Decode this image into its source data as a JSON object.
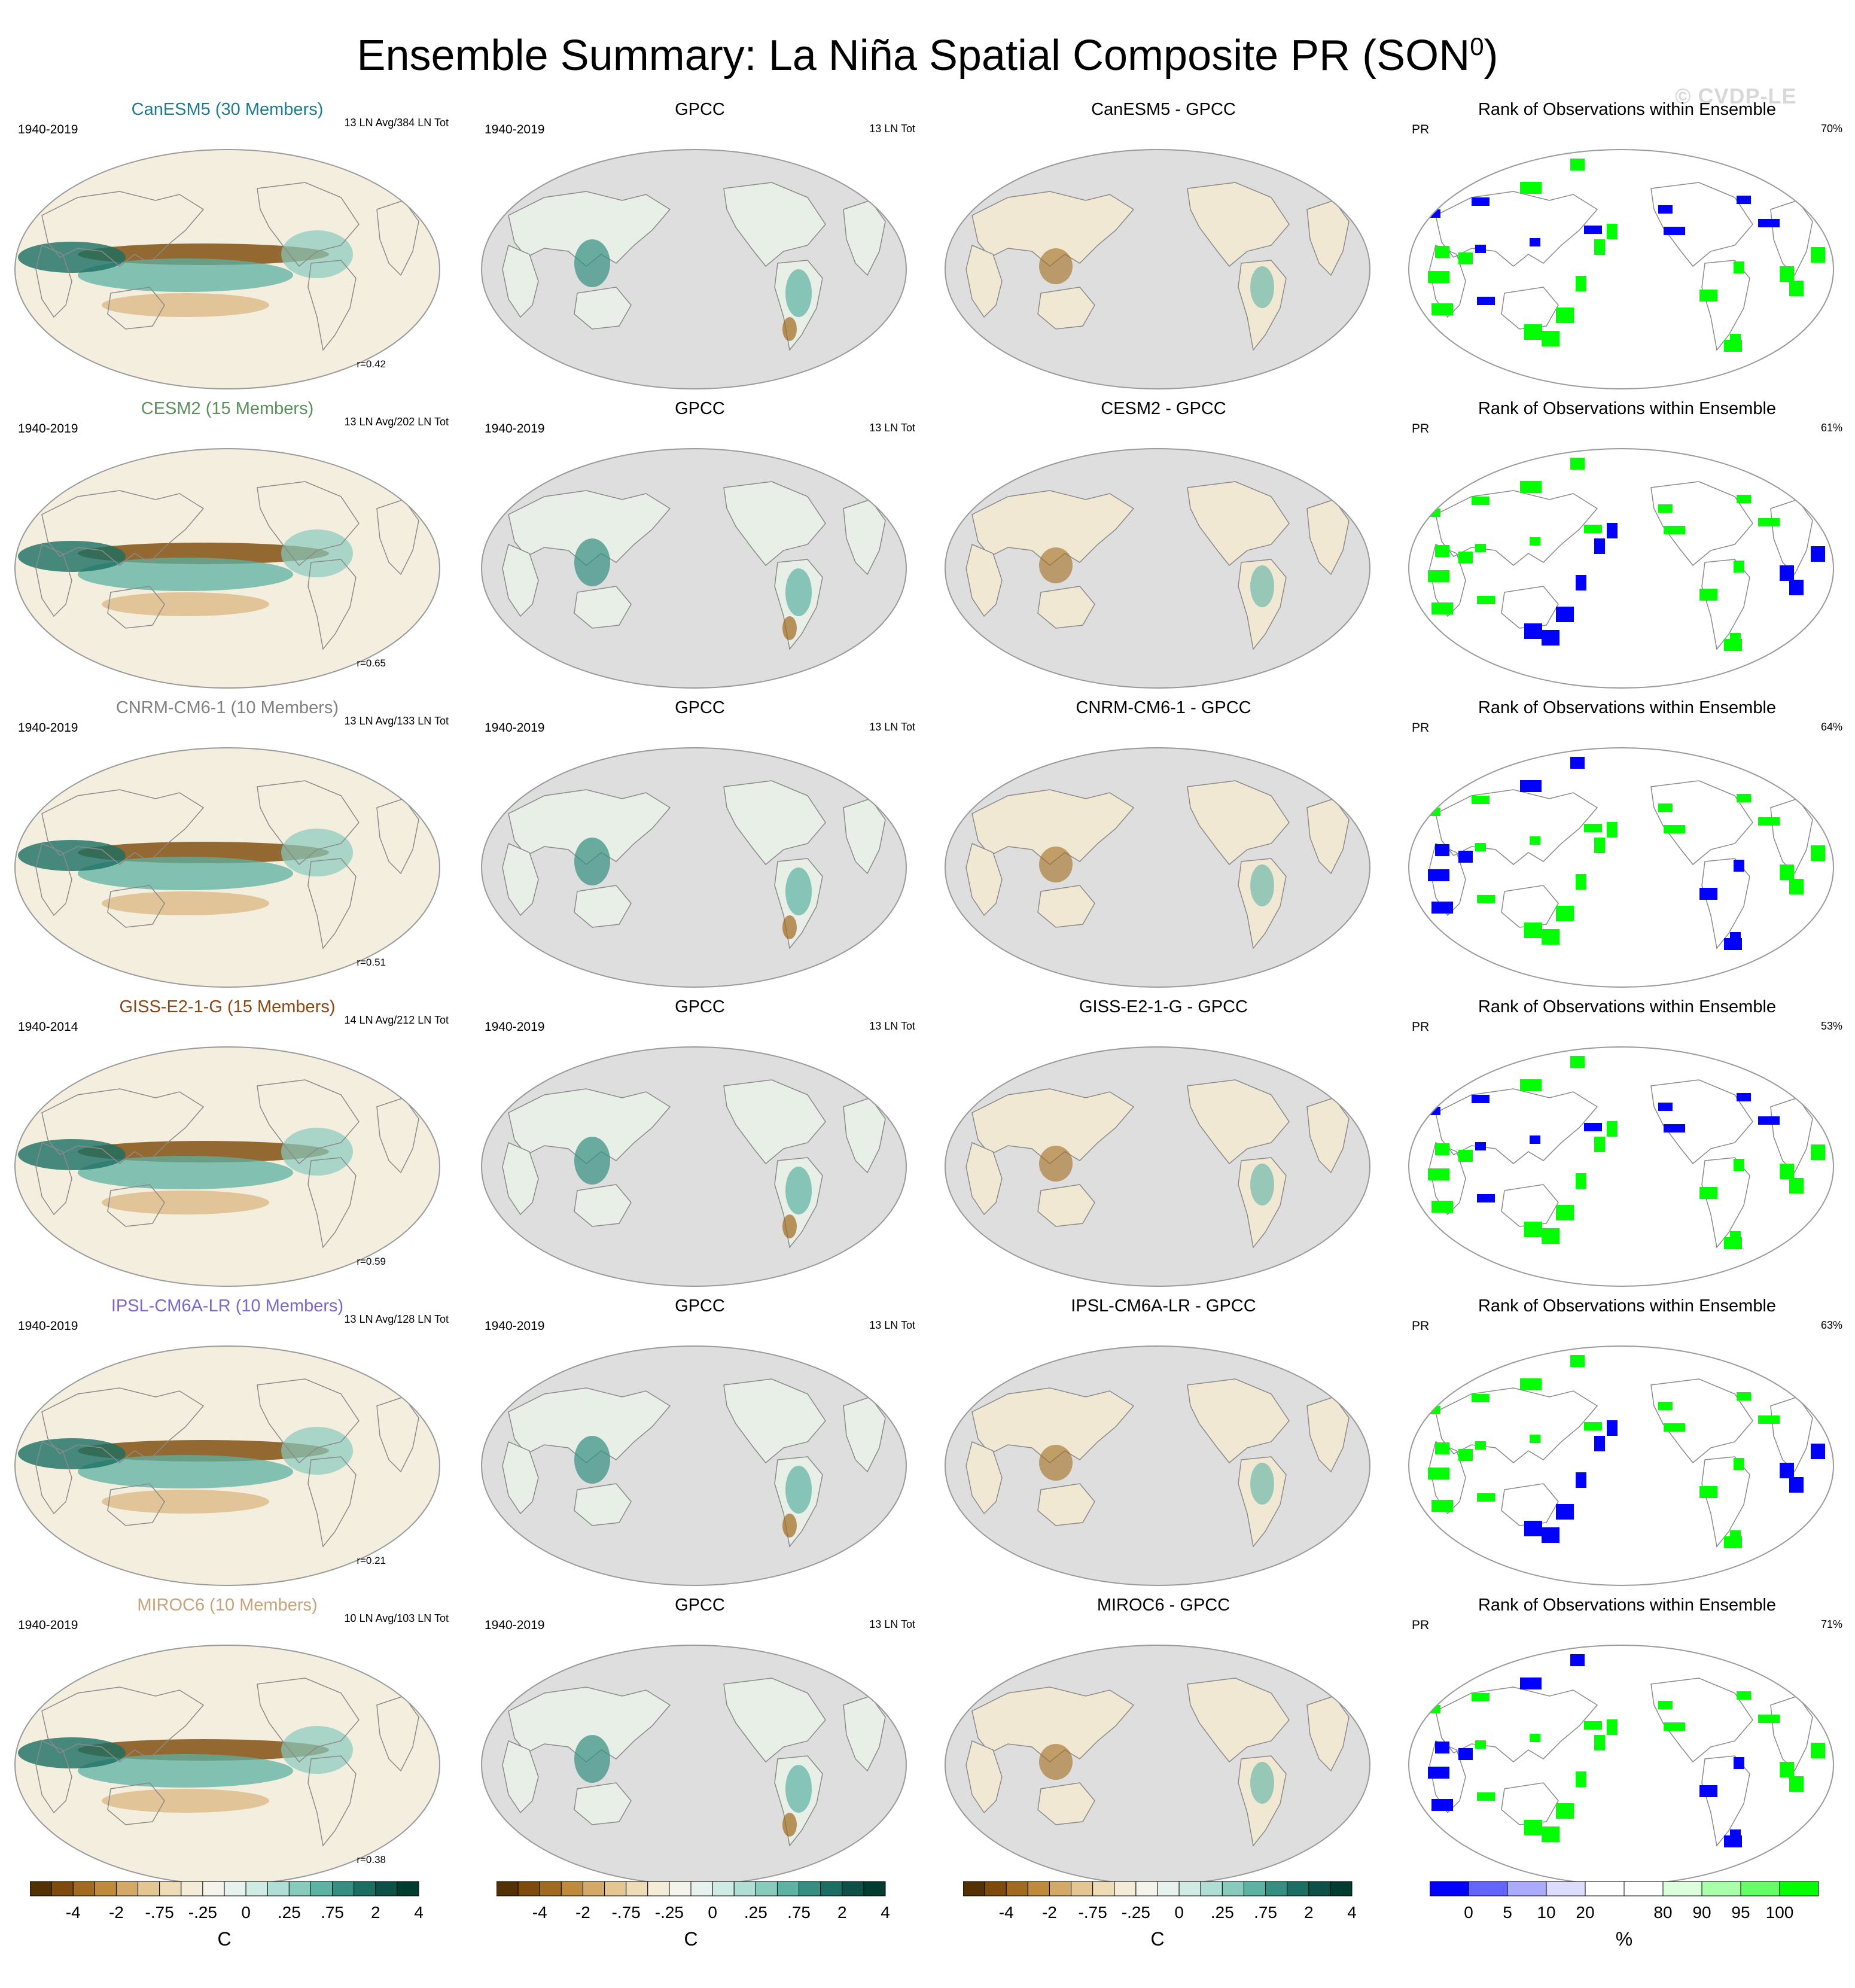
{
  "title_main": "Ensemble Summary: La Niña Spatial Composite PR (SON",
  "title_sup": "0",
  "title_close": ")",
  "watermark": "© CVDP-LE",
  "colors": {
    "diverging": [
      "#543005",
      "#7f4b0c",
      "#a26a1e",
      "#bf8a3a",
      "#d4a967",
      "#e3c692",
      "#eedcb6",
      "#f5ecd8",
      "#f4f3ec",
      "#e7f2ef",
      "#d0ebe4",
      "#b0ded4",
      "#88cbbd",
      "#5cb2a3",
      "#348f82",
      "#1a6e63",
      "#0c5047",
      "#003c30"
    ],
    "rank": [
      "#0000ff",
      "#6464ff",
      "#aaaaff",
      "#dcdcff",
      "#ffffff",
      "#ffffff",
      "#dcffdc",
      "#aaffaa",
      "#64ff64",
      "#00ff00"
    ],
    "ocean_obs": "#dedede",
    "model_text": [
      "#1f7a8c",
      "#5b8f5b",
      "#808080",
      "#8b4513",
      "#7b68c8",
      "#c8a27a"
    ]
  },
  "rows": [
    {
      "model_label": "CanESM5 (30 Members)",
      "period": "1940-2019",
      "ln_info": "13 LN Avg/384 LN Tot",
      "r": "r=0.42",
      "obs_label": "GPCC",
      "obs_period": "1940-2019",
      "obs_info": "13 LN Tot",
      "diff_label": "CanESM5 - GPCC",
      "rank_title": "Rank of Observations within Ensemble",
      "rank_var": "PR",
      "rank_pct": "70%"
    },
    {
      "model_label": "CESM2 (15 Members)",
      "period": "1940-2019",
      "ln_info": "13 LN Avg/202 LN Tot",
      "r": "r=0.65",
      "obs_label": "GPCC",
      "obs_period": "1940-2019",
      "obs_info": "13 LN Tot",
      "diff_label": "CESM2 - GPCC",
      "rank_title": "Rank of Observations within Ensemble",
      "rank_var": "PR",
      "rank_pct": "61%"
    },
    {
      "model_label": "CNRM-CM6-1 (10 Members)",
      "period": "1940-2019",
      "ln_info": "13 LN Avg/133 LN Tot",
      "r": "r=0.51",
      "obs_label": "GPCC",
      "obs_period": "1940-2019",
      "obs_info": "13 LN Tot",
      "diff_label": "CNRM-CM6-1 - GPCC",
      "rank_title": "Rank of Observations within Ensemble",
      "rank_var": "PR",
      "rank_pct": "64%"
    },
    {
      "model_label": "GISS-E2-1-G (15 Members)",
      "period": "1940-2014",
      "ln_info": "14 LN Avg/212 LN Tot",
      "r": "r=0.59",
      "obs_label": "GPCC",
      "obs_period": "1940-2019",
      "obs_info": "13 LN Tot",
      "diff_label": "GISS-E2-1-G - GPCC",
      "rank_title": "Rank of Observations within Ensemble",
      "rank_var": "PR",
      "rank_pct": "53%"
    },
    {
      "model_label": "IPSL-CM6A-LR (10 Members)",
      "period": "1940-2019",
      "ln_info": "13 LN Avg/128 LN Tot",
      "r": "r=0.21",
      "obs_label": "GPCC",
      "obs_period": "1940-2019",
      "obs_info": "13 LN Tot",
      "diff_label": "IPSL-CM6A-LR - GPCC",
      "rank_title": "Rank of Observations within Ensemble",
      "rank_var": "PR",
      "rank_pct": "63%"
    },
    {
      "model_label": "MIROC6 (10 Members)",
      "period": "1940-2019",
      "ln_info": "10 LN Avg/103 LN Tot",
      "r": "r=0.38",
      "obs_label": "GPCC",
      "obs_period": "1940-2019",
      "obs_info": "13 LN Tot",
      "diff_label": "MIROC6 - GPCC",
      "rank_title": "Rank of Observations within Ensemble",
      "rank_var": "PR",
      "rank_pct": "71%"
    }
  ],
  "colorbars": {
    "diverging_ticks": [
      "-4",
      "-2",
      "-.75",
      "-.25",
      "0",
      ".25",
      ".75",
      "2",
      "4"
    ],
    "diverging_unit": "C",
    "rank_ticks": [
      "0",
      "5",
      "10",
      "20",
      "80",
      "90",
      "95",
      "100"
    ],
    "rank_unit": "%"
  }
}
